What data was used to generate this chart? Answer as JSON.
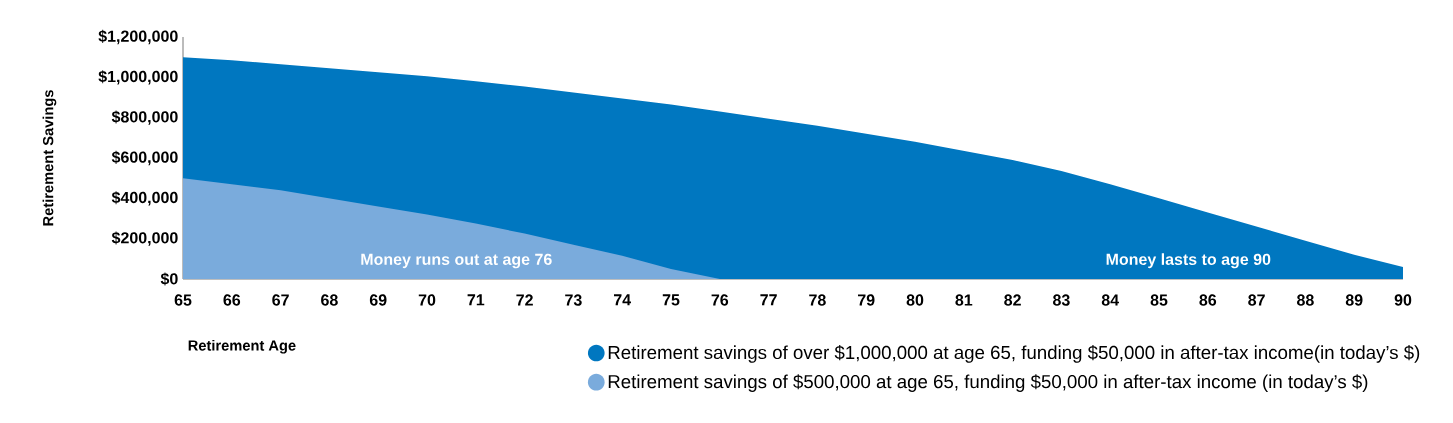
{
  "chart_data": {
    "type": "area",
    "xlabel": "Retirement Age",
    "ylabel": "Retirement Savings",
    "x": [
      65,
      66,
      67,
      68,
      69,
      70,
      71,
      72,
      73,
      74,
      75,
      76,
      77,
      78,
      79,
      80,
      81,
      82,
      83,
      84,
      85,
      86,
      87,
      88,
      89,
      90
    ],
    "series": [
      {
        "name": "Retirement savings of over $1,000,000 at age 65, funding $50,000 in after-tax income(in today’s $)",
        "color": "#0077c0",
        "values": [
          1100000,
          1085000,
          1065000,
          1045000,
          1025000,
          1005000,
          980000,
          955000,
          925000,
          895000,
          865000,
          830000,
          795000,
          760000,
          720000,
          680000,
          635000,
          590000,
          535000,
          470000,
          400000,
          330000,
          260000,
          190000,
          120000,
          60000
        ]
      },
      {
        "name": "Retirement savings of $500,000 at age 65, funding $50,000 in after-tax income (in today’s $)",
        "color": "#7aabdc",
        "x": [
          65,
          66,
          67,
          68,
          69,
          70,
          71,
          72,
          73,
          74,
          75,
          76
        ],
        "values": [
          500000,
          470000,
          440000,
          400000,
          360000,
          320000,
          275000,
          225000,
          170000,
          115000,
          50000,
          0
        ]
      }
    ],
    "xlim": [
      65,
      90
    ],
    "xticks": [
      65,
      66,
      67,
      68,
      69,
      70,
      71,
      72,
      73,
      74,
      75,
      76,
      77,
      78,
      79,
      80,
      81,
      82,
      83,
      84,
      85,
      86,
      87,
      88,
      89,
      90
    ],
    "ylim": [
      0,
      1200000
    ],
    "yticks": [
      {
        "value": 0,
        "label": "$0"
      },
      {
        "value": 200000,
        "label": "$200,000"
      },
      {
        "value": 400000,
        "label": "$400,000"
      },
      {
        "value": 600000,
        "label": "$600,000"
      },
      {
        "value": 800000,
        "label": "$800,000"
      },
      {
        "value": 1000000,
        "label": "$1,000,000"
      },
      {
        "value": 1200000,
        "label": "$1,200,000"
      }
    ],
    "annotations": [
      "Money runs out at age 76",
      "Money lasts to age 90"
    ],
    "legend": "bottom right",
    "grid": false
  }
}
